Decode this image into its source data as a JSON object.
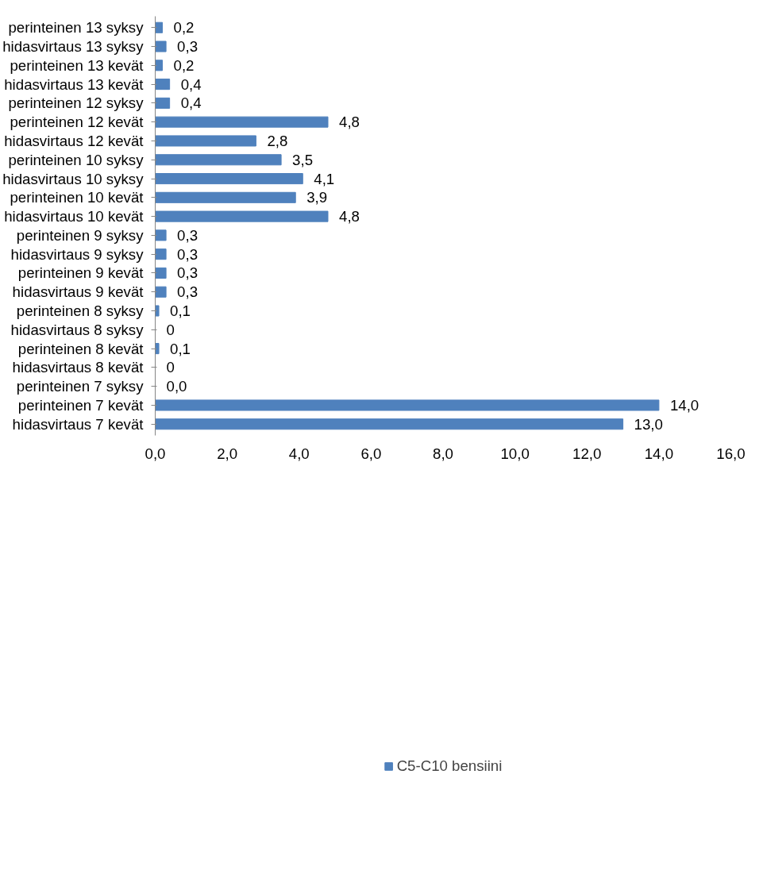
{
  "chart_data": {
    "type": "bar",
    "orientation": "horizontal",
    "categories": [
      "perinteinen 13 syksy",
      "hidasvirtaus 13 syksy",
      "perinteinen 13 kevät",
      "hidasvirtaus 13 kevät",
      "perinteinen 12 syksy",
      "perinteinen 12 kevät",
      "hidasvirtaus 12 kevät",
      "perinteinen 10 syksy",
      "hidasvirtaus 10 syksy",
      "perinteinen 10 kevät",
      "hidasvirtaus 10 kevät",
      "perinteinen 9 syksy",
      "hidasvirtaus 9 syksy",
      "perinteinen 9 kevät",
      "hidasvirtaus 9 kevät",
      "perinteinen 8 syksy",
      "hidasvirtaus 8 syksy",
      "perinteinen 8 kevät",
      "hidasvirtaus 8 kevät",
      "perinteinen 7 syksy",
      "perinteinen 7 kevät",
      "hidasvirtaus 7 kevät"
    ],
    "series": [
      {
        "name": "C5-C10 bensiini",
        "color": "#4f81bd",
        "values": [
          0.2,
          0.3,
          0.2,
          0.4,
          0.4,
          4.8,
          2.8,
          3.5,
          4.1,
          3.9,
          4.8,
          0.3,
          0.3,
          0.3,
          0.3,
          0.1,
          0,
          0.1,
          0,
          0.0,
          14.0,
          13.0
        ],
        "value_labels": [
          "0,2",
          "0,3",
          "0,2",
          "0,4",
          "0,4",
          "4,8",
          "2,8",
          "3,5",
          "4,1",
          "3,9",
          "4,8",
          "0,3",
          "0,3",
          "0,3",
          "0,3",
          "0,1",
          "0",
          "0,1",
          "0",
          "0,0",
          "14,0",
          "13,0"
        ]
      }
    ],
    "xlim": [
      0,
      16
    ],
    "xticks": [
      {
        "value": 0,
        "label": "0,0"
      },
      {
        "value": 2,
        "label": "2,0"
      },
      {
        "value": 4,
        "label": "4,0"
      },
      {
        "value": 6,
        "label": "6,0"
      },
      {
        "value": 8,
        "label": "8,0"
      },
      {
        "value": 10,
        "label": "10,0"
      },
      {
        "value": 12,
        "label": "12,0"
      },
      {
        "value": 14,
        "label": "14,0"
      },
      {
        "value": 16,
        "label": "16,0"
      }
    ],
    "grid": false,
    "legend": "bottom"
  }
}
